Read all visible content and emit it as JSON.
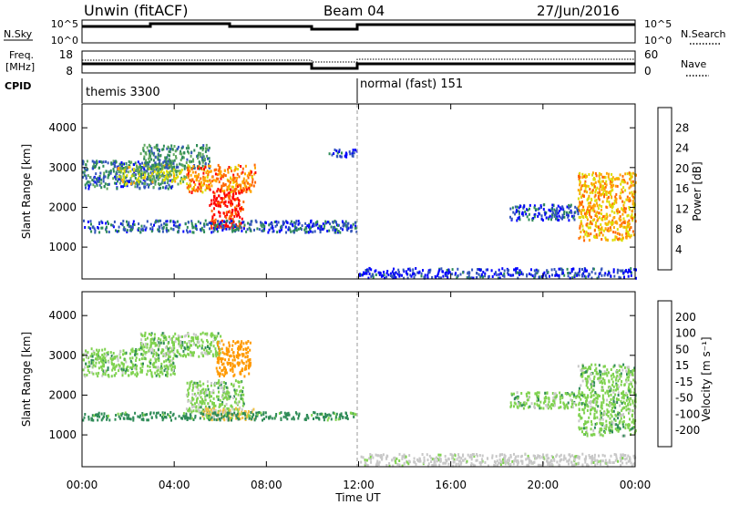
{
  "header": {
    "station": "Unwin (fitACF)",
    "beam": "Beam 04",
    "date": "27/Jun/2016"
  },
  "status_panels": {
    "nsky_label": "N.Sky",
    "nsky_ticks": [
      "10^5",
      "10^0"
    ],
    "nsearch_label": "N.Search",
    "nsearch_ticks": [
      "10^5",
      "10^0"
    ],
    "freq_label": "Freq.",
    "freq_unit": "[MHz]",
    "freq_ticks": [
      "18",
      "8"
    ],
    "nave_label": "Nave",
    "nave_ticks": [
      "60",
      "0"
    ],
    "cpid_label": "CPID",
    "cpid_segments": [
      "themis 3300",
      "normal (fast) 151"
    ]
  },
  "colors": {
    "power": [
      "#0000ff",
      "#3355bb",
      "#2e8b57",
      "#5fa85f",
      "#dddd00",
      "#ffa500",
      "#ff6600",
      "#ff0000"
    ],
    "velocity": [
      "#1e3ca8",
      "#3a6fd6",
      "#2e8b57",
      "#7fd24f",
      "#c8c8c8",
      "#f0c040",
      "#ff9900",
      "#ff5a00",
      "#ff0000"
    ]
  },
  "colorbars": {
    "power": {
      "label": "Power [dB]",
      "ticks": [
        "28",
        "24",
        "20",
        "16",
        "12",
        "8",
        "4"
      ]
    },
    "velocity": {
      "label": "Velocity [m s⁻¹]",
      "ticks": [
        "200",
        "100",
        "50",
        "15",
        "-15",
        "-50",
        "-100",
        "-200"
      ]
    }
  },
  "chart_data": [
    {
      "type": "heatmap",
      "title": "Power",
      "xlabel": "Time UT",
      "ylabel": "Slant Range [km]",
      "xlim": [
        "00:00",
        "24:00"
      ],
      "ylim": [
        200,
        4600
      ],
      "x_ticks": [
        "00:00",
        "04:00",
        "08:00",
        "12:00",
        "16:00",
        "20:00",
        "00:00"
      ],
      "y_ticks": [
        1000,
        2000,
        3000,
        4000
      ],
      "color_scale": {
        "label": "Power [dB]",
        "min": 4,
        "max": 28
      },
      "regions": [
        {
          "t0": 0.0,
          "t1": 3.9,
          "r0": 2500,
          "r1": 3200,
          "power": 10
        },
        {
          "t0": 1.5,
          "t1": 4.5,
          "r0": 2600,
          "r1": 3100,
          "power": 16
        },
        {
          "t0": 2.5,
          "t1": 5.5,
          "r0": 3000,
          "r1": 3600,
          "power": 12
        },
        {
          "t0": 4.5,
          "t1": 7.5,
          "r0": 2400,
          "r1": 3100,
          "power": 22
        },
        {
          "t0": 5.5,
          "t1": 7.0,
          "r0": 1500,
          "r1": 2500,
          "power": 26
        },
        {
          "t0": 0.0,
          "t1": 11.9,
          "r0": 1400,
          "r1": 1700,
          "power": 9
        },
        {
          "t0": 10.6,
          "t1": 11.9,
          "r0": 3300,
          "r1": 3500,
          "power": 7
        },
        {
          "t0": 12.0,
          "t1": 24.0,
          "r0": 250,
          "r1": 500,
          "power": 7
        },
        {
          "t0": 18.5,
          "t1": 21.5,
          "r0": 1700,
          "r1": 2100,
          "power": 8
        },
        {
          "t0": 21.5,
          "t1": 24.0,
          "r0": 1200,
          "r1": 2900,
          "power": 20
        }
      ]
    },
    {
      "type": "heatmap",
      "title": "Velocity",
      "xlabel": "Time UT",
      "ylabel": "Slant Range [km]",
      "xlim": [
        "00:00",
        "24:00"
      ],
      "ylim": [
        200,
        4600
      ],
      "x_ticks": [
        "00:00",
        "04:00",
        "08:00",
        "12:00",
        "16:00",
        "20:00",
        "00:00"
      ],
      "y_ticks": [
        1000,
        2000,
        3000,
        4000
      ],
      "color_scale": {
        "label": "Velocity [m s⁻¹]",
        "min": -200,
        "max": 200
      },
      "regions": [
        {
          "t0": 0.0,
          "t1": 4.0,
          "r0": 2500,
          "r1": 3200,
          "velocity": 0
        },
        {
          "t0": 2.5,
          "t1": 6.0,
          "r0": 3000,
          "r1": 3600,
          "velocity": 0
        },
        {
          "t0": 5.8,
          "t1": 7.3,
          "r0": 2500,
          "r1": 3400,
          "velocity": -180
        },
        {
          "t0": 4.5,
          "t1": 7.0,
          "r0": 1600,
          "r1": 2400,
          "velocity": 0
        },
        {
          "t0": 5.0,
          "t1": 7.5,
          "r0": 1400,
          "r1": 1700,
          "velocity": -60
        },
        {
          "t0": 0.0,
          "t1": 11.9,
          "r0": 1400,
          "r1": 1600,
          "velocity": 30
        },
        {
          "t0": 12.0,
          "t1": 24.0,
          "r0": 250,
          "r1": 550,
          "velocity": -30
        },
        {
          "t0": 18.5,
          "t1": 21.5,
          "r0": 1700,
          "r1": 2100,
          "velocity": 0
        },
        {
          "t0": 21.5,
          "t1": 24.0,
          "r0": 1000,
          "r1": 2800,
          "velocity": 0
        }
      ]
    }
  ]
}
